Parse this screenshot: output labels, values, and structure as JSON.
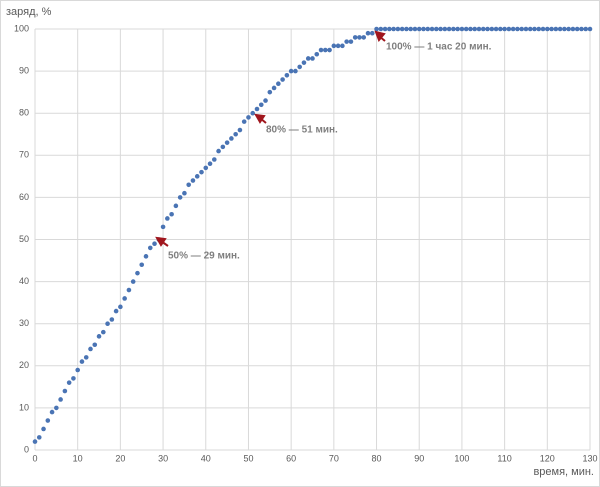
{
  "chart_data": {
    "type": "scatter",
    "y_label": "заряд, %",
    "x_label": "время, мин.",
    "color": "#4a74b4",
    "grid": true,
    "xlim": [
      0,
      130
    ],
    "xticks": [
      0,
      10,
      20,
      30,
      40,
      50,
      60,
      70,
      80,
      90,
      100,
      110,
      120,
      130
    ],
    "ylim": [
      0,
      100
    ],
    "yticks": [
      0,
      10,
      20,
      30,
      40,
      50,
      60,
      70,
      80,
      90,
      100
    ],
    "x": [
      0,
      1,
      2,
      3,
      4,
      5,
      6,
      7,
      8,
      9,
      10,
      11,
      12,
      13,
      14,
      15,
      16,
      17,
      18,
      19,
      20,
      21,
      22,
      23,
      24,
      25,
      26,
      27,
      28,
      29,
      30,
      31,
      32,
      33,
      34,
      35,
      36,
      37,
      38,
      39,
      40,
      41,
      42,
      43,
      44,
      45,
      46,
      47,
      48,
      49,
      50,
      51,
      52,
      53,
      54,
      55,
      56,
      57,
      58,
      59,
      60,
      61,
      62,
      63,
      64,
      65,
      66,
      67,
      68,
      69,
      70,
      71,
      72,
      73,
      74,
      75,
      76,
      77,
      78,
      79,
      80,
      81,
      82,
      83,
      84,
      85,
      86,
      87,
      88,
      89,
      90,
      91,
      92,
      93,
      94,
      95,
      96,
      97,
      98,
      99,
      100,
      101,
      102,
      103,
      104,
      105,
      106,
      107,
      108,
      109,
      110,
      111,
      112,
      113,
      114,
      115,
      116,
      117,
      118,
      119,
      120,
      121,
      122,
      123,
      124,
      125,
      126,
      127,
      128,
      129,
      130
    ],
    "values": [
      2,
      3,
      5,
      7,
      9,
      10,
      12,
      14,
      16,
      17,
      19,
      21,
      22,
      24,
      25,
      27,
      28,
      30,
      31,
      33,
      34,
      36,
      38,
      40,
      42,
      44,
      46,
      48,
      49,
      50,
      53,
      55,
      56,
      58,
      60,
      61,
      63,
      64,
      65,
      66,
      67,
      68,
      69,
      71,
      72,
      73,
      74,
      75,
      76,
      78,
      79,
      80,
      81,
      82,
      83,
      85,
      86,
      87,
      88,
      89,
      90,
      90,
      91,
      92,
      93,
      93,
      94,
      95,
      95,
      95,
      96,
      96,
      96,
      97,
      97,
      98,
      98,
      98,
      99,
      99,
      100,
      100,
      100,
      100,
      100,
      100,
      100,
      100,
      100,
      100,
      100,
      100,
      100,
      100,
      100,
      100,
      100,
      100,
      100,
      100,
      100,
      100,
      100,
      100,
      100,
      100,
      100,
      100,
      100,
      100,
      100,
      100,
      100,
      100,
      100,
      100,
      100,
      100,
      100,
      100,
      100,
      100,
      100,
      100,
      100,
      100,
      100,
      100,
      100,
      100,
      100
    ],
    "annotations": [
      "50% — 29 мин.",
      "80% — 51 мин.",
      "100% — 1 час 20 мин."
    ]
  }
}
